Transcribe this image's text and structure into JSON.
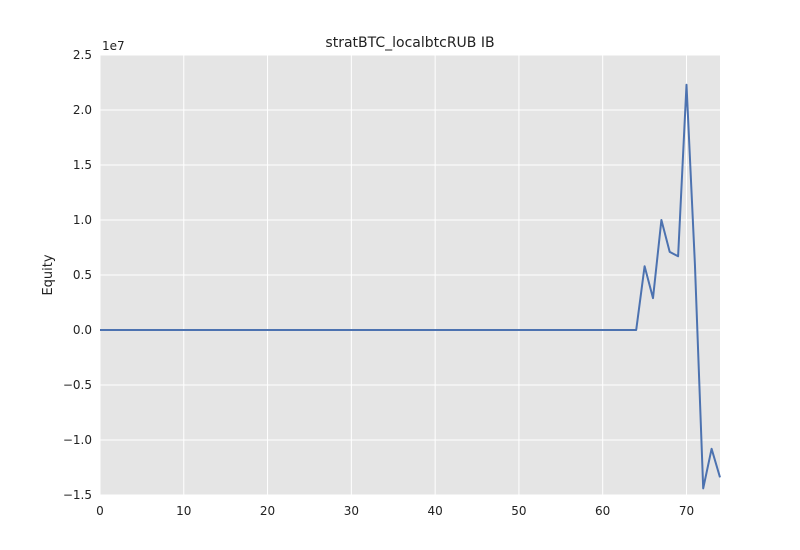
{
  "chart_data": {
    "type": "line",
    "title": "stratBTC_localbtcRUB IB",
    "xlabel": "",
    "ylabel": "Equity",
    "y_offset_label": "1e7",
    "xlim": [
      0,
      74
    ],
    "ylim": [
      -1.5,
      2.5
    ],
    "x_ticks": [
      0,
      10,
      20,
      30,
      40,
      50,
      60,
      70
    ],
    "x_tick_labels": [
      "0",
      "10",
      "20",
      "30",
      "40",
      "50",
      "60",
      "70"
    ],
    "y_ticks": [
      -1.5,
      -1.0,
      -0.5,
      0.0,
      0.5,
      1.0,
      1.5,
      2.0,
      2.5
    ],
    "y_tick_labels": [
      "−1.5",
      "−1.0",
      "−0.5",
      "0.0",
      "0.5",
      "1.0",
      "1.5",
      "2.0",
      "2.5"
    ],
    "grid": true,
    "background": "#e5e5e5",
    "grid_color": "#ffffff",
    "line_color": "#4c72b0",
    "series": [
      {
        "x": [
          0,
          10,
          20,
          30,
          40,
          50,
          60,
          64,
          65,
          66,
          67,
          68,
          69,
          70,
          71,
          72,
          73,
          74
        ],
        "y": [
          0,
          0,
          0,
          0,
          0,
          0,
          0,
          0,
          0.58,
          0.29,
          1.0,
          0.71,
          0.67,
          2.23,
          0.6,
          -1.44,
          -1.08,
          -1.34
        ]
      }
    ]
  }
}
